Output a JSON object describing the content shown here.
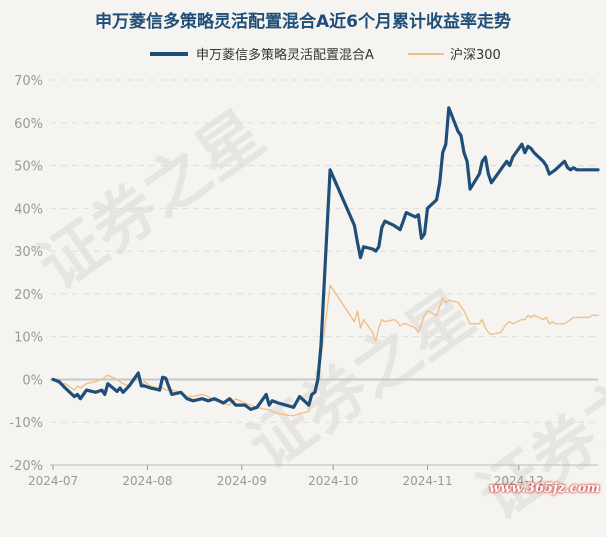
{
  "chart_data": {
    "type": "line",
    "title": "申万菱信多策略灵活配置混合A近6个月累计收益率走势",
    "xlabel": "",
    "ylabel": "",
    "ylim": [
      -20,
      70
    ],
    "yticks": [
      "70%",
      "60%",
      "50%",
      "40%",
      "30%",
      "20%",
      "10%",
      "0%",
      "-10%",
      "-20%"
    ],
    "ytick_values": [
      70,
      60,
      50,
      40,
      30,
      20,
      10,
      0,
      -10,
      -20
    ],
    "xticks": [
      {
        "label": "2024-07",
        "date": "2024-07-01"
      },
      {
        "label": "2024-08",
        "date": "2024-08-01"
      },
      {
        "label": "2024-09",
        "date": "2024-09-01"
      },
      {
        "label": "2024-10",
        "date": "2024-10-01"
      },
      {
        "label": "2024-11",
        "date": "2024-11-01"
      },
      {
        "label": "2024-12",
        "date": "2024-12-01"
      }
    ],
    "x_range": [
      "2024-06-30",
      "2024-12-27"
    ],
    "grid": true,
    "legend_position": "top",
    "series": [
      {
        "name": "申万菱信多策略灵活配置混合A",
        "color": "#1f4e79",
        "points": [
          [
            "2024-07-01",
            0
          ],
          [
            "2024-07-03",
            -0.5
          ],
          [
            "2024-07-05",
            -2
          ],
          [
            "2024-07-08",
            -4
          ],
          [
            "2024-07-09",
            -3.5
          ],
          [
            "2024-07-10",
            -4.5
          ],
          [
            "2024-07-12",
            -2.5
          ],
          [
            "2024-07-15",
            -3
          ],
          [
            "2024-07-17",
            -2.5
          ],
          [
            "2024-07-18",
            -3.5
          ],
          [
            "2024-07-19",
            -1
          ],
          [
            "2024-07-22",
            -2.8
          ],
          [
            "2024-07-23",
            -2
          ],
          [
            "2024-07-24",
            -3
          ],
          [
            "2024-07-26",
            -1.5
          ],
          [
            "2024-07-29",
            1.5
          ],
          [
            "2024-07-30",
            -1.5
          ],
          [
            "2024-07-31",
            -1.5
          ],
          [
            "2024-08-02",
            -2
          ],
          [
            "2024-08-05",
            -2.5
          ],
          [
            "2024-08-06",
            0.5
          ],
          [
            "2024-08-07",
            0.3
          ],
          [
            "2024-08-09",
            -3.5
          ],
          [
            "2024-08-12",
            -3
          ],
          [
            "2024-08-14",
            -4.5
          ],
          [
            "2024-08-16",
            -5
          ],
          [
            "2024-08-19",
            -4.5
          ],
          [
            "2024-08-21",
            -5
          ],
          [
            "2024-08-23",
            -4.5
          ],
          [
            "2024-08-26",
            -5.5
          ],
          [
            "2024-08-28",
            -4.5
          ],
          [
            "2024-08-30",
            -6
          ],
          [
            "2024-09-02",
            -6
          ],
          [
            "2024-09-04",
            -7
          ],
          [
            "2024-09-06",
            -6.5
          ],
          [
            "2024-09-09",
            -3.5
          ],
          [
            "2024-09-10",
            -6
          ],
          [
            "2024-09-11",
            -5
          ],
          [
            "2024-09-13",
            -5.5
          ],
          [
            "2024-09-18",
            -6.5
          ],
          [
            "2024-09-20",
            -4
          ],
          [
            "2024-09-23",
            -6
          ],
          [
            "2024-09-24",
            -3.5
          ],
          [
            "2024-09-25",
            -3
          ],
          [
            "2024-09-26",
            0
          ],
          [
            "2024-09-27",
            8
          ],
          [
            "2024-09-30",
            49
          ],
          [
            "2024-10-08",
            36
          ],
          [
            "2024-10-09",
            32
          ],
          [
            "2024-10-10",
            28.5
          ],
          [
            "2024-10-11",
            31
          ],
          [
            "2024-10-14",
            30.5
          ],
          [
            "2024-10-15",
            30
          ],
          [
            "2024-10-16",
            31
          ],
          [
            "2024-10-17",
            35.5
          ],
          [
            "2024-10-18",
            37
          ],
          [
            "2024-10-21",
            36
          ],
          [
            "2024-10-22",
            35.5
          ],
          [
            "2024-10-23",
            35
          ],
          [
            "2024-10-24",
            37
          ],
          [
            "2024-10-25",
            39
          ],
          [
            "2024-10-28",
            38
          ],
          [
            "2024-10-29",
            38.5
          ],
          [
            "2024-10-30",
            33
          ],
          [
            "2024-10-31",
            34
          ],
          [
            "2024-11-01",
            40
          ],
          [
            "2024-11-04",
            42
          ],
          [
            "2024-11-05",
            46
          ],
          [
            "2024-11-06",
            53
          ],
          [
            "2024-11-07",
            55
          ],
          [
            "2024-11-08",
            63.5
          ],
          [
            "2024-11-11",
            58
          ],
          [
            "2024-11-12",
            57
          ],
          [
            "2024-11-13",
            53
          ],
          [
            "2024-11-14",
            51
          ],
          [
            "2024-11-15",
            44.5
          ],
          [
            "2024-11-18",
            48
          ],
          [
            "2024-11-19",
            51
          ],
          [
            "2024-11-20",
            52
          ],
          [
            "2024-11-21",
            48
          ],
          [
            "2024-11-22",
            46
          ],
          [
            "2024-11-25",
            49
          ],
          [
            "2024-11-26",
            50
          ],
          [
            "2024-11-27",
            51
          ],
          [
            "2024-11-28",
            50
          ],
          [
            "2024-11-29",
            52
          ],
          [
            "2024-12-02",
            55
          ],
          [
            "2024-12-03",
            53
          ],
          [
            "2024-12-04",
            54.5
          ],
          [
            "2024-12-05",
            54
          ],
          [
            "2024-12-06",
            53
          ],
          [
            "2024-12-09",
            51
          ],
          [
            "2024-12-10",
            50
          ],
          [
            "2024-12-11",
            48
          ],
          [
            "2024-12-12",
            48.5
          ],
          [
            "2024-12-13",
            49
          ],
          [
            "2024-12-16",
            51
          ],
          [
            "2024-12-17",
            49.5
          ],
          [
            "2024-12-18",
            49
          ],
          [
            "2024-12-19",
            49.5
          ],
          [
            "2024-12-20",
            49
          ],
          [
            "2024-12-23",
            49
          ],
          [
            "2024-12-24",
            49
          ],
          [
            "2024-12-25",
            49
          ],
          [
            "2024-12-27",
            49
          ]
        ]
      },
      {
        "name": "沪深300",
        "color": "#f0c08a",
        "points": [
          [
            "2024-07-01",
            0
          ],
          [
            "2024-07-03",
            -1
          ],
          [
            "2024-07-05",
            -1
          ],
          [
            "2024-07-08",
            -2.5
          ],
          [
            "2024-07-09",
            -1.5
          ],
          [
            "2024-07-10",
            -2
          ],
          [
            "2024-07-12",
            -1
          ],
          [
            "2024-07-15",
            -0.5
          ],
          [
            "2024-07-17",
            0
          ],
          [
            "2024-07-18",
            0.5
          ],
          [
            "2024-07-19",
            1
          ],
          [
            "2024-07-22",
            0
          ],
          [
            "2024-07-23",
            -0.5
          ],
          [
            "2024-07-24",
            -1
          ],
          [
            "2024-07-26",
            -1.5
          ],
          [
            "2024-07-29",
            0.5
          ],
          [
            "2024-07-30",
            -1.5
          ],
          [
            "2024-07-31",
            -0.5
          ],
          [
            "2024-08-02",
            -1.5
          ],
          [
            "2024-08-05",
            -2
          ],
          [
            "2024-08-06",
            -2
          ],
          [
            "2024-08-07",
            -2.5
          ],
          [
            "2024-08-09",
            -2.5
          ],
          [
            "2024-08-12",
            -3
          ],
          [
            "2024-08-14",
            -4
          ],
          [
            "2024-08-16",
            -4
          ],
          [
            "2024-08-19",
            -3.5
          ],
          [
            "2024-08-21",
            -4
          ],
          [
            "2024-08-23",
            -5
          ],
          [
            "2024-08-26",
            -5.5
          ],
          [
            "2024-08-28",
            -6
          ],
          [
            "2024-08-30",
            -4.5
          ],
          [
            "2024-09-02",
            -5.5
          ],
          [
            "2024-09-04",
            -6
          ],
          [
            "2024-09-06",
            -6.5
          ],
          [
            "2024-09-09",
            -7
          ],
          [
            "2024-09-10",
            -7
          ],
          [
            "2024-09-11",
            -7.5
          ],
          [
            "2024-09-13",
            -8
          ],
          [
            "2024-09-18",
            -8.5
          ],
          [
            "2024-09-20",
            -8
          ],
          [
            "2024-09-23",
            -7.5
          ],
          [
            "2024-09-24",
            -4
          ],
          [
            "2024-09-25",
            -2
          ],
          [
            "2024-09-26",
            2
          ],
          [
            "2024-09-27",
            5
          ],
          [
            "2024-09-30",
            22
          ],
          [
            "2024-10-08",
            13.5
          ],
          [
            "2024-10-09",
            16
          ],
          [
            "2024-10-10",
            12
          ],
          [
            "2024-10-11",
            14
          ],
          [
            "2024-10-14",
            11
          ],
          [
            "2024-10-15",
            9
          ],
          [
            "2024-10-16",
            12
          ],
          [
            "2024-10-17",
            14
          ],
          [
            "2024-10-18",
            13.5
          ],
          [
            "2024-10-21",
            14
          ],
          [
            "2024-10-22",
            13.5
          ],
          [
            "2024-10-23",
            12.5
          ],
          [
            "2024-10-24",
            13
          ],
          [
            "2024-10-25",
            13
          ],
          [
            "2024-10-28",
            12
          ],
          [
            "2024-10-29",
            11
          ],
          [
            "2024-10-30",
            13
          ],
          [
            "2024-10-31",
            15
          ],
          [
            "2024-11-01",
            16
          ],
          [
            "2024-11-04",
            15
          ],
          [
            "2024-11-05",
            17
          ],
          [
            "2024-11-06",
            19
          ],
          [
            "2024-11-07",
            18
          ],
          [
            "2024-11-08",
            18.5
          ],
          [
            "2024-11-11",
            18
          ],
          [
            "2024-11-12",
            17
          ],
          [
            "2024-11-13",
            16
          ],
          [
            "2024-11-14",
            14.5
          ],
          [
            "2024-11-15",
            13
          ],
          [
            "2024-11-18",
            13
          ],
          [
            "2024-11-19",
            14
          ],
          [
            "2024-11-20",
            12
          ],
          [
            "2024-11-21",
            11
          ],
          [
            "2024-11-22",
            10.5
          ],
          [
            "2024-11-25",
            11
          ],
          [
            "2024-11-26",
            12
          ],
          [
            "2024-11-27",
            13
          ],
          [
            "2024-11-28",
            13.5
          ],
          [
            "2024-11-29",
            13
          ],
          [
            "2024-12-02",
            14
          ],
          [
            "2024-12-03",
            14
          ],
          [
            "2024-12-04",
            15
          ],
          [
            "2024-12-05",
            14.5
          ],
          [
            "2024-12-06",
            15
          ],
          [
            "2024-12-09",
            14
          ],
          [
            "2024-12-10",
            14.5
          ],
          [
            "2024-12-11",
            13
          ],
          [
            "2024-12-12",
            13.5
          ],
          [
            "2024-12-13",
            13
          ],
          [
            "2024-12-16",
            13
          ],
          [
            "2024-12-17",
            13.5
          ],
          [
            "2024-12-18",
            14
          ],
          [
            "2024-12-19",
            14.5
          ],
          [
            "2024-12-20",
            14.5
          ],
          [
            "2024-12-23",
            14.5
          ],
          [
            "2024-12-24",
            14.5
          ],
          [
            "2024-12-25",
            15
          ],
          [
            "2024-12-27",
            15
          ]
        ]
      }
    ]
  },
  "watermark": {
    "text": "证券之星",
    "url": "www.365jz.com"
  },
  "colors": {
    "title": "#1f4e79",
    "axis_text": "#999999",
    "grid": "#dddddd",
    "zero_line": "#c8c8c8",
    "background": "#f6f4f0"
  }
}
